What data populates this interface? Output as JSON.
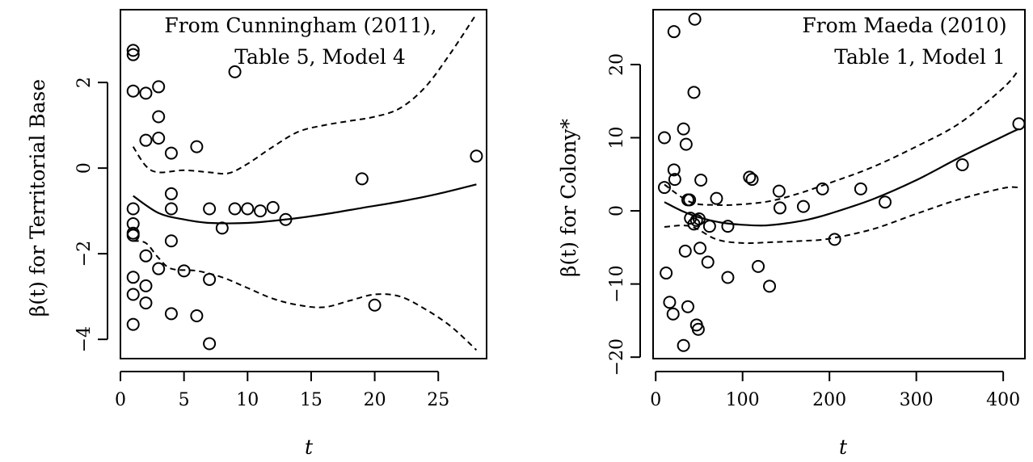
{
  "chart_data": [
    {
      "type": "scatter",
      "title_lines": [
        "From Cunningham (2011),",
        "Table 5, Model 4"
      ],
      "xlabel": "t",
      "ylabel": "β(t)  for Territorial Base",
      "xlim": [
        0,
        28.8
      ],
      "ylim": [
        -4.45,
        3.7
      ],
      "xticks": [
        0,
        5,
        10,
        15,
        20,
        25
      ],
      "yticks": [
        -4,
        -2,
        0,
        2
      ],
      "ytick_labels": [
        "−4",
        "−2",
        "0",
        "2"
      ],
      "points": [
        [
          1,
          2.75
        ],
        [
          1,
          2.65
        ],
        [
          1,
          1.8
        ],
        [
          2,
          1.75
        ],
        [
          3,
          1.9
        ],
        [
          9,
          2.25
        ],
        [
          3,
          1.2
        ],
        [
          2,
          0.65
        ],
        [
          3,
          0.7
        ],
        [
          4,
          0.35
        ],
        [
          6,
          0.5
        ],
        [
          28,
          0.28
        ],
        [
          19,
          -0.25
        ],
        [
          4,
          -0.6
        ],
        [
          1,
          -0.95
        ],
        [
          4,
          -0.95
        ],
        [
          7,
          -0.95
        ],
        [
          9,
          -0.95
        ],
        [
          10,
          -0.95
        ],
        [
          11,
          -1.0
        ],
        [
          12,
          -0.92
        ],
        [
          13,
          -1.2
        ],
        [
          1,
          -1.3
        ],
        [
          1,
          -1.52
        ],
        [
          1,
          -1.57
        ],
        [
          8,
          -1.4
        ],
        [
          4,
          -1.7
        ],
        [
          2,
          -2.05
        ],
        [
          3,
          -2.35
        ],
        [
          5,
          -2.4
        ],
        [
          1,
          -2.55
        ],
        [
          7,
          -2.6
        ],
        [
          2,
          -2.75
        ],
        [
          1,
          -2.95
        ],
        [
          2,
          -3.15
        ],
        [
          20,
          -3.2
        ],
        [
          4,
          -3.4
        ],
        [
          6,
          -3.45
        ],
        [
          1,
          -3.65
        ],
        [
          7,
          -4.1
        ]
      ],
      "fit_line": [
        [
          1,
          -0.65
        ],
        [
          3,
          -1.05
        ],
        [
          5,
          -1.2
        ],
        [
          7,
          -1.28
        ],
        [
          10,
          -1.28
        ],
        [
          13,
          -1.2
        ],
        [
          16,
          -1.08
        ],
        [
          19,
          -0.93
        ],
        [
          22,
          -0.78
        ],
        [
          25,
          -0.6
        ],
        [
          28,
          -0.38
        ]
      ],
      "upper_band": [
        [
          1,
          0.5
        ],
        [
          2,
          0.05
        ],
        [
          3,
          -0.1
        ],
        [
          5,
          -0.05
        ],
        [
          7,
          -0.1
        ],
        [
          8.5,
          -0.12
        ],
        [
          10,
          0.1
        ],
        [
          12,
          0.5
        ],
        [
          14,
          0.85
        ],
        [
          16,
          1.0
        ],
        [
          18,
          1.1
        ],
        [
          20,
          1.2
        ],
        [
          22,
          1.4
        ],
        [
          24,
          1.9
        ],
        [
          26,
          2.7
        ],
        [
          28,
          3.6
        ]
      ],
      "lower_band": [
        [
          1,
          -1.7
        ],
        [
          2,
          -1.75
        ],
        [
          3,
          -2.1
        ],
        [
          4,
          -2.35
        ],
        [
          6,
          -2.4
        ],
        [
          8,
          -2.55
        ],
        [
          10,
          -2.8
        ],
        [
          12,
          -3.05
        ],
        [
          14,
          -3.2
        ],
        [
          16,
          -3.25
        ],
        [
          18,
          -3.1
        ],
        [
          20,
          -2.95
        ],
        [
          22,
          -3.0
        ],
        [
          24,
          -3.3
        ],
        [
          26,
          -3.7
        ],
        [
          28,
          -4.25
        ]
      ],
      "grid": false
    },
    {
      "type": "scatter",
      "title_lines": [
        "From Maeda (2010)",
        "Table 1, Model 1"
      ],
      "xlabel": "t",
      "ylabel": "β(t)  for Colony*",
      "xlim": [
        -3,
        425
      ],
      "ylim": [
        -20.2,
        27.5
      ],
      "xticks": [
        0,
        100,
        200,
        300,
        400
      ],
      "yticks": [
        -20,
        -10,
        0,
        10,
        20
      ],
      "ytick_labels": [
        "−20",
        "−10",
        "0",
        "10",
        "20"
      ],
      "points": [
        [
          45,
          26.2
        ],
        [
          21,
          24.5
        ],
        [
          44,
          16.2
        ],
        [
          32,
          11.2
        ],
        [
          10,
          10.0
        ],
        [
          35,
          9.1
        ],
        [
          21,
          5.6
        ],
        [
          22,
          4.3
        ],
        [
          52,
          4.2
        ],
        [
          108,
          4.6
        ],
        [
          111,
          4.3
        ],
        [
          10,
          3.2
        ],
        [
          142,
          2.7
        ],
        [
          192,
          3.0
        ],
        [
          236,
          3.0
        ],
        [
          353,
          6.3
        ],
        [
          418,
          11.9
        ],
        [
          37,
          1.5
        ],
        [
          39,
          1.5
        ],
        [
          70,
          1.7
        ],
        [
          143,
          0.4
        ],
        [
          170,
          0.6
        ],
        [
          264,
          1.2
        ],
        [
          40,
          -1.0
        ],
        [
          47,
          -1.3
        ],
        [
          50,
          -1.1
        ],
        [
          44,
          -1.8
        ],
        [
          62,
          -2.1
        ],
        [
          83,
          -2.1
        ],
        [
          206,
          -3.9
        ],
        [
          34,
          -5.5
        ],
        [
          51,
          -5.1
        ],
        [
          60,
          -7.0
        ],
        [
          118,
          -7.6
        ],
        [
          12,
          -8.5
        ],
        [
          83,
          -9.1
        ],
        [
          131,
          -10.3
        ],
        [
          16,
          -12.5
        ],
        [
          37,
          -13.1
        ],
        [
          20,
          -14.1
        ],
        [
          47,
          -15.6
        ],
        [
          49,
          -16.2
        ],
        [
          32,
          -18.4
        ]
      ],
      "fit_line": [
        [
          10,
          1.2
        ],
        [
          30,
          0
        ],
        [
          50,
          -0.9
        ],
        [
          75,
          -1.6
        ],
        [
          100,
          -1.9
        ],
        [
          125,
          -2.0
        ],
        [
          150,
          -1.7
        ],
        [
          175,
          -1.2
        ],
        [
          200,
          -0.4
        ],
        [
          250,
          1.6
        ],
        [
          300,
          4.2
        ],
        [
          350,
          7.3
        ],
        [
          400,
          10.2
        ],
        [
          418,
          11.2
        ]
      ],
      "upper_band": [
        [
          10,
          3.6
        ],
        [
          40,
          1.2
        ],
        [
          70,
          0.8
        ],
        [
          100,
          0.9
        ],
        [
          130,
          1.3
        ],
        [
          160,
          2.2
        ],
        [
          200,
          3.8
        ],
        [
          250,
          6.0
        ],
        [
          300,
          8.8
        ],
        [
          350,
          12.0
        ],
        [
          400,
          16.8
        ],
        [
          418,
          19.3
        ]
      ],
      "lower_band": [
        [
          10,
          -2.2
        ],
        [
          40,
          -2.1
        ],
        [
          70,
          -3.9
        ],
        [
          100,
          -4.4
        ],
        [
          130,
          -4.3
        ],
        [
          170,
          -4.1
        ],
        [
          200,
          -3.8
        ],
        [
          250,
          -2.5
        ],
        [
          300,
          -0.4
        ],
        [
          350,
          1.6
        ],
        [
          400,
          3.1
        ],
        [
          418,
          3.2
        ]
      ],
      "grid": false
    }
  ]
}
